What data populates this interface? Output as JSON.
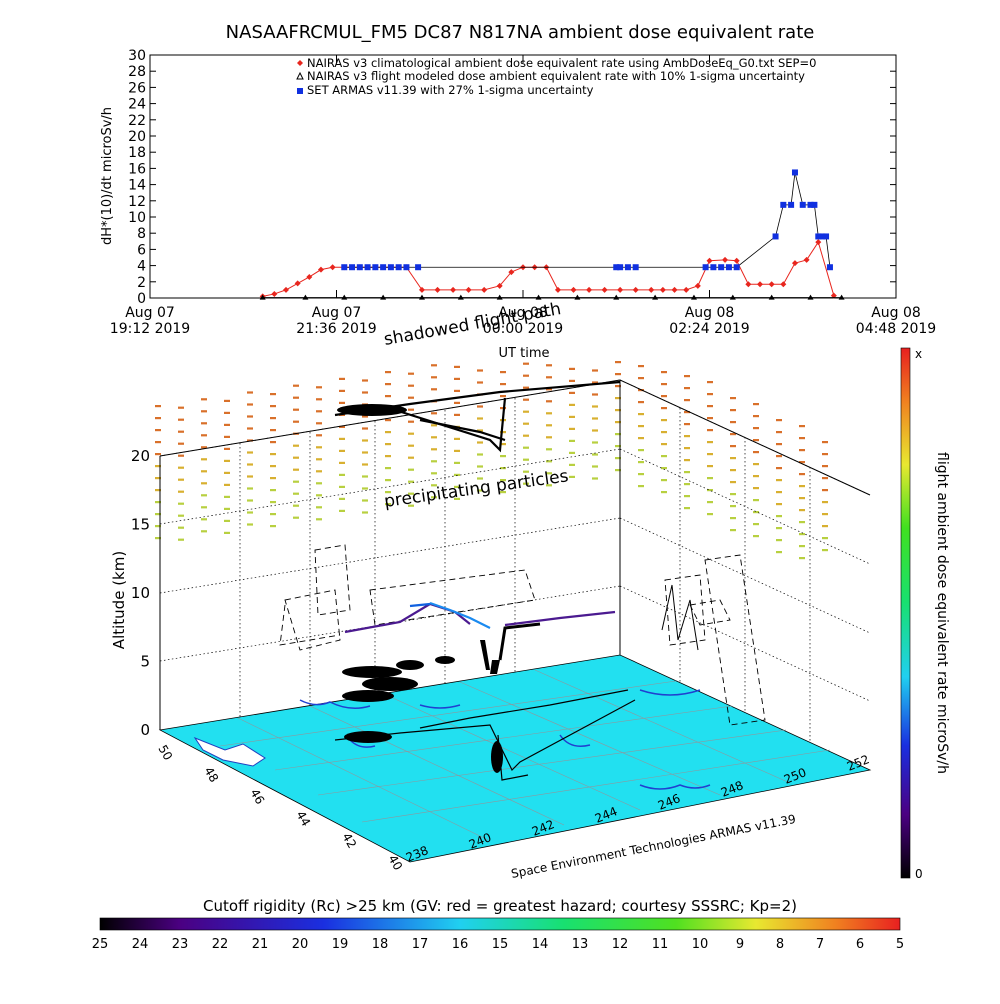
{
  "title": "NASAAFRCMUL_FM5 DC87 N817NA ambient dose equivalent rate",
  "panel1": {
    "ylabel": "dH*(10)/dt microSv/h",
    "xlabel": "UT time",
    "yticks": [
      "0",
      "2",
      "4",
      "6",
      "8",
      "10",
      "12",
      "14",
      "16",
      "18",
      "20",
      "22",
      "24",
      "26",
      "28",
      "30"
    ],
    "xticks": [
      {
        "line1": "Aug 07",
        "line2": "19:12 2019"
      },
      {
        "line1": "Aug 07",
        "line2": "21:36 2019"
      },
      {
        "line1": "Aug 08",
        "line2": "00:00 2019"
      },
      {
        "line1": "Aug 08",
        "line2": "02:24 2019"
      },
      {
        "line1": "Aug 08",
        "line2": "04:48 2019"
      }
    ],
    "legend": [
      "NAIRAS v3 climatological ambient dose equivalent rate using AmbDoseEq_G0.txt SEP=0",
      "NAIRAS v3 flight modeled dose ambient equivalent rate with 10% 1-sigma uncertainty",
      "SET ARMAS v11.39 with 27% 1-sigma uncertainty"
    ]
  },
  "panel2": {
    "ylabel": "Altitude (km)",
    "zticks": [
      "0",
      "5",
      "10",
      "15",
      "20"
    ],
    "lat_ticks": [
      "50",
      "48",
      "46",
      "44",
      "42",
      "40"
    ],
    "lon_ticks": [
      "238",
      "240",
      "242",
      "244",
      "246",
      "248",
      "250",
      "252"
    ],
    "annotations": {
      "shadowed": "shadowed flight path",
      "precip": "precipitating particles",
      "credit": "Space Environment Technologies ARMAS v11.39"
    },
    "colorbar_label": "flight ambient dose equivalent rate microSv/h",
    "colorbar_top": "x",
    "colorbar_bottom": "0"
  },
  "cutoff": {
    "label": "Cutoff rigidity (Rc) >25 km (GV: red = greatest hazard; courtesy SSSRC; Kp=2)",
    "ticks": [
      "25",
      "24",
      "23",
      "22",
      "21",
      "20",
      "19",
      "18",
      "17",
      "16",
      "15",
      "14",
      "13",
      "12",
      "11",
      "10",
      "9",
      "8",
      "7",
      "6",
      "5"
    ]
  },
  "colors": {
    "nairas_clim": "#e8261e",
    "nairas_flight": "#000000",
    "armas": "#1030e0",
    "ground": "#22e0f0"
  },
  "chart_data": [
    {
      "type": "line",
      "title": "NASAAFRCMUL_FM5 DC87 N817NA ambient dose equivalent rate",
      "xlabel": "UT time",
      "ylabel": "dH*(10)/dt microSv/h",
      "x_unit": "hours since Aug 07 19:12 2019",
      "xlim": [
        0,
        9.6
      ],
      "ylim": [
        0,
        30
      ],
      "grid": false,
      "legend_position": "top-right",
      "series": [
        {
          "name": "NAIRAS v3 climatological ambient dose equivalent rate using AmbDoseEq_G0.txt SEP=0",
          "marker": "diamond",
          "x": [
            1.45,
            1.6,
            1.75,
            1.9,
            2.05,
            2.2,
            2.35,
            2.5,
            2.7,
            2.9,
            3.1,
            3.3,
            3.5,
            3.7,
            3.9,
            4.1,
            4.3,
            4.5,
            4.65,
            4.8,
            4.95,
            5.1,
            5.25,
            5.45,
            5.65,
            5.85,
            6.05,
            6.25,
            6.45,
            6.6,
            6.75,
            6.9,
            7.05,
            7.2,
            7.4,
            7.55,
            7.7,
            7.85,
            8.0,
            8.15,
            8.3,
            8.45,
            8.6,
            8.8
          ],
          "y": [
            0.2,
            0.5,
            1.0,
            1.8,
            2.6,
            3.5,
            3.8,
            3.8,
            3.8,
            3.8,
            3.8,
            3.8,
            1.0,
            1.0,
            1.0,
            1.0,
            1.0,
            1.5,
            3.2,
            3.8,
            3.8,
            3.8,
            1.0,
            1.0,
            1.0,
            1.0,
            1.0,
            1.0,
            1.0,
            1.0,
            1.0,
            1.0,
            1.5,
            4.6,
            4.7,
            4.6,
            1.7,
            1.7,
            1.7,
            1.7,
            4.3,
            4.7,
            6.9,
            0.3
          ]
        },
        {
          "name": "NAIRAS v3 flight modeled dose ambient equivalent rate with 10% 1-sigma uncertainty",
          "marker": "triangle",
          "x": [
            1.45,
            2.0,
            2.5,
            3.0,
            3.5,
            4.0,
            4.5,
            5.0,
            5.5,
            6.0,
            6.5,
            7.0,
            7.5,
            8.0,
            8.5,
            8.9
          ],
          "y": [
            0.05,
            0.05,
            0.05,
            0.05,
            0.05,
            0.05,
            0.05,
            0.05,
            0.05,
            0.05,
            0.05,
            0.05,
            0.05,
            0.05,
            0.05,
            0.05
          ]
        },
        {
          "name": "SET ARMAS v11.39 with 27% 1-sigma uncertainty",
          "marker": "square",
          "x": [
            2.5,
            2.6,
            2.7,
            2.8,
            2.9,
            3.0,
            3.1,
            3.2,
            3.3,
            3.45,
            6.0,
            6.05,
            6.15,
            6.25,
            7.15,
            7.25,
            7.35,
            7.45,
            7.55,
            8.05,
            8.15,
            8.25,
            8.3,
            8.4,
            8.5,
            8.55,
            8.6,
            8.65,
            8.7,
            8.75
          ],
          "y": [
            3.8,
            3.8,
            3.8,
            3.8,
            3.8,
            3.8,
            3.8,
            3.8,
            3.8,
            3.8,
            3.8,
            3.8,
            3.8,
            3.8,
            3.8,
            3.8,
            3.8,
            3.8,
            3.8,
            7.6,
            11.5,
            11.5,
            15.5,
            11.5,
            11.5,
            11.5,
            7.6,
            7.6,
            7.6,
            3.8
          ]
        }
      ]
    }
  ]
}
